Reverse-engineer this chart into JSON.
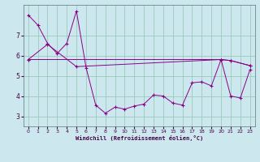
{
  "xlabel": "Windchill (Refroidissement éolien,°C)",
  "bg_color": "#cce8ee",
  "line_color": "#880088",
  "grid_color": "#99ccbb",
  "xlim": [
    -0.5,
    23.5
  ],
  "ylim": [
    2.5,
    8.5
  ],
  "yticks": [
    3,
    4,
    5,
    6,
    7
  ],
  "xticks": [
    0,
    1,
    2,
    3,
    4,
    5,
    6,
    7,
    8,
    9,
    10,
    11,
    12,
    13,
    14,
    15,
    16,
    17,
    18,
    19,
    20,
    21,
    22,
    23
  ],
  "series1_x": [
    0,
    1,
    2,
    3,
    4,
    5,
    6,
    7,
    8,
    9,
    10,
    11,
    12,
    13,
    14,
    15,
    16,
    17,
    18,
    19,
    20,
    21,
    22,
    23
  ],
  "series1_y": [
    8.0,
    7.5,
    6.6,
    6.1,
    6.6,
    8.2,
    5.4,
    3.55,
    3.15,
    3.45,
    3.35,
    3.5,
    3.6,
    4.05,
    4.0,
    3.65,
    3.55,
    4.65,
    4.7,
    4.5,
    5.8,
    4.0,
    3.9,
    5.3
  ],
  "series2_x": [
    0,
    20,
    21,
    23
  ],
  "series2_y": [
    5.8,
    5.8,
    5.75,
    5.5
  ],
  "series3_x": [
    0,
    2,
    5,
    20,
    21,
    23
  ],
  "series3_y": [
    5.8,
    6.55,
    5.45,
    5.8,
    5.75,
    5.5
  ]
}
